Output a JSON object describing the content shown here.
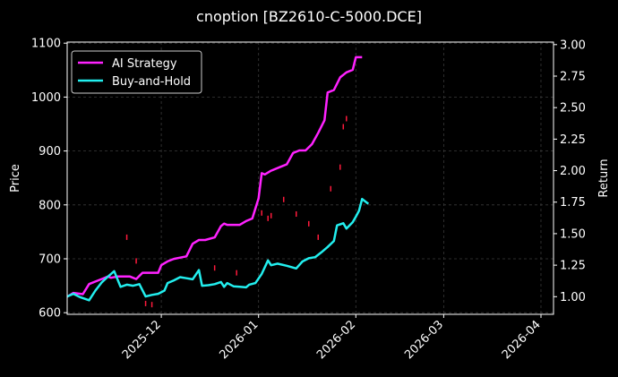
{
  "chart_data": {
    "type": "line",
    "title": "cnoption [BZ2610-C-5000.DCE]",
    "ylabel_left": "Price",
    "ylabel_right": "Return",
    "ylim_left": [
      597,
      1102
    ],
    "ylim_right": [
      0.86,
      3.02
    ],
    "xlim": [
      "2025-11-01",
      "2026-04-05"
    ],
    "grid": true,
    "legend_position": "top-left",
    "x_ticks": [
      "2025-12",
      "2026-01",
      "2026-02",
      "2026-03",
      "2026-04"
    ],
    "y_ticks_left": [
      "600",
      "700",
      "800",
      "900",
      "1000",
      "1100"
    ],
    "y_ticks_right": [
      "1.00",
      "1.25",
      "1.50",
      "1.75",
      "2.00",
      "2.25",
      "2.50",
      "2.75",
      "3.00"
    ],
    "colors": {
      "background": "#000000",
      "ai_strategy": "#ff22ff",
      "buy_and_hold": "#22eeee",
      "price_marks": "#ff1a3c",
      "grid": "#3a3a3a"
    },
    "series": [
      {
        "name": "AI Strategy",
        "axis": "right",
        "points": [
          [
            "2025-11-01",
            1.0
          ],
          [
            "2025-11-03",
            1.03
          ],
          [
            "2025-11-06",
            1.02
          ],
          [
            "2025-11-08",
            1.1
          ],
          [
            "2025-11-10",
            1.12
          ],
          [
            "2025-11-12",
            1.14
          ],
          [
            "2025-11-14",
            1.16
          ],
          [
            "2025-11-15",
            1.15
          ],
          [
            "2025-11-17",
            1.16
          ],
          [
            "2025-11-19",
            1.16
          ],
          [
            "2025-11-21",
            1.16
          ],
          [
            "2025-11-23",
            1.14
          ],
          [
            "2025-11-25",
            1.19
          ],
          [
            "2025-11-27",
            1.19
          ],
          [
            "2025-11-29",
            1.19
          ],
          [
            "2025-11-30",
            1.19
          ],
          [
            "2025-12-01",
            1.25
          ],
          [
            "2025-12-03",
            1.28
          ],
          [
            "2025-12-05",
            1.3
          ],
          [
            "2025-12-07",
            1.31
          ],
          [
            "2025-12-09",
            1.32
          ],
          [
            "2025-12-11",
            1.42
          ],
          [
            "2025-12-13",
            1.45
          ],
          [
            "2025-12-15",
            1.45
          ],
          [
            "2025-12-18",
            1.47
          ],
          [
            "2025-12-20",
            1.56
          ],
          [
            "2025-12-21",
            1.58
          ],
          [
            "2025-12-22",
            1.57
          ],
          [
            "2025-12-24",
            1.57
          ],
          [
            "2025-12-26",
            1.57
          ],
          [
            "2025-12-28",
            1.6
          ],
          [
            "2025-12-30",
            1.62
          ],
          [
            "2026-01-01",
            1.78
          ],
          [
            "2026-01-02",
            1.98
          ],
          [
            "2026-01-03",
            1.97
          ],
          [
            "2026-01-05",
            2.0
          ],
          [
            "2026-01-08",
            2.03
          ],
          [
            "2026-01-10",
            2.05
          ],
          [
            "2026-01-12",
            2.14
          ],
          [
            "2026-01-14",
            2.16
          ],
          [
            "2026-01-16",
            2.16
          ],
          [
            "2026-01-18",
            2.21
          ],
          [
            "2026-01-20",
            2.3
          ],
          [
            "2026-01-22",
            2.4
          ],
          [
            "2026-01-23",
            2.62
          ],
          [
            "2026-01-25",
            2.64
          ],
          [
            "2026-01-27",
            2.74
          ],
          [
            "2026-01-29",
            2.78
          ],
          [
            "2026-01-31",
            2.8
          ],
          [
            "2026-02-01",
            2.9
          ],
          [
            "2026-02-03",
            2.9
          ]
        ]
      },
      {
        "name": "Buy-and-Hold",
        "axis": "left",
        "points": [
          [
            "2025-11-01",
            630
          ],
          [
            "2025-11-03",
            635
          ],
          [
            "2025-11-05",
            629
          ],
          [
            "2025-11-08",
            623
          ],
          [
            "2025-11-10",
            641
          ],
          [
            "2025-11-12",
            656
          ],
          [
            "2025-11-14",
            667
          ],
          [
            "2025-11-16",
            677
          ],
          [
            "2025-11-18",
            648
          ],
          [
            "2025-11-20",
            652
          ],
          [
            "2025-11-22",
            650
          ],
          [
            "2025-11-24",
            653
          ],
          [
            "2025-11-26",
            630
          ],
          [
            "2025-11-28",
            633
          ],
          [
            "2025-11-30",
            635
          ],
          [
            "2025-12-02",
            641
          ],
          [
            "2025-12-03",
            655
          ],
          [
            "2025-12-05",
            660
          ],
          [
            "2025-12-07",
            666
          ],
          [
            "2025-12-09",
            664
          ],
          [
            "2025-12-11",
            662
          ],
          [
            "2025-12-13",
            679
          ],
          [
            "2025-12-14",
            650
          ],
          [
            "2025-12-16",
            651
          ],
          [
            "2025-12-18",
            653
          ],
          [
            "2025-12-20",
            657
          ],
          [
            "2025-12-21",
            648
          ],
          [
            "2025-12-22",
            655
          ],
          [
            "2025-12-24",
            649
          ],
          [
            "2025-12-26",
            648
          ],
          [
            "2025-12-28",
            647
          ],
          [
            "2025-12-29",
            652
          ],
          [
            "2025-12-31",
            655
          ],
          [
            "2026-01-02",
            672
          ],
          [
            "2026-01-04",
            697
          ],
          [
            "2026-01-05",
            688
          ],
          [
            "2026-01-07",
            691
          ],
          [
            "2026-01-10",
            687
          ],
          [
            "2026-01-13",
            682
          ],
          [
            "2026-01-15",
            695
          ],
          [
            "2026-01-17",
            701
          ],
          [
            "2026-01-19",
            703
          ],
          [
            "2026-01-21",
            712
          ],
          [
            "2026-01-23",
            722
          ],
          [
            "2026-01-25",
            733
          ],
          [
            "2026-01-26",
            762
          ],
          [
            "2026-01-28",
            766
          ],
          [
            "2026-01-29",
            756
          ],
          [
            "2026-01-31",
            768
          ],
          [
            "2026-02-01",
            778
          ],
          [
            "2026-02-02",
            789
          ],
          [
            "2026-02-03",
            811
          ],
          [
            "2026-02-05",
            802
          ]
        ]
      }
    ],
    "price_marks": [
      [
        "2025-11-20",
        740
      ],
      [
        "2025-11-23",
        696
      ],
      [
        "2025-11-26",
        617
      ],
      [
        "2025-11-28",
        615
      ],
      [
        "2025-12-18",
        683
      ],
      [
        "2025-12-25",
        674
      ],
      [
        "2026-01-02",
        785
      ],
      [
        "2026-01-04",
        775
      ],
      [
        "2026-01-05",
        780
      ],
      [
        "2026-01-09",
        810
      ],
      [
        "2026-01-13",
        783
      ],
      [
        "2026-01-17",
        765
      ],
      [
        "2026-01-20",
        740
      ],
      [
        "2026-01-24",
        830
      ],
      [
        "2026-01-27",
        870
      ],
      [
        "2026-01-28",
        945
      ],
      [
        "2026-01-29",
        960
      ]
    ]
  }
}
